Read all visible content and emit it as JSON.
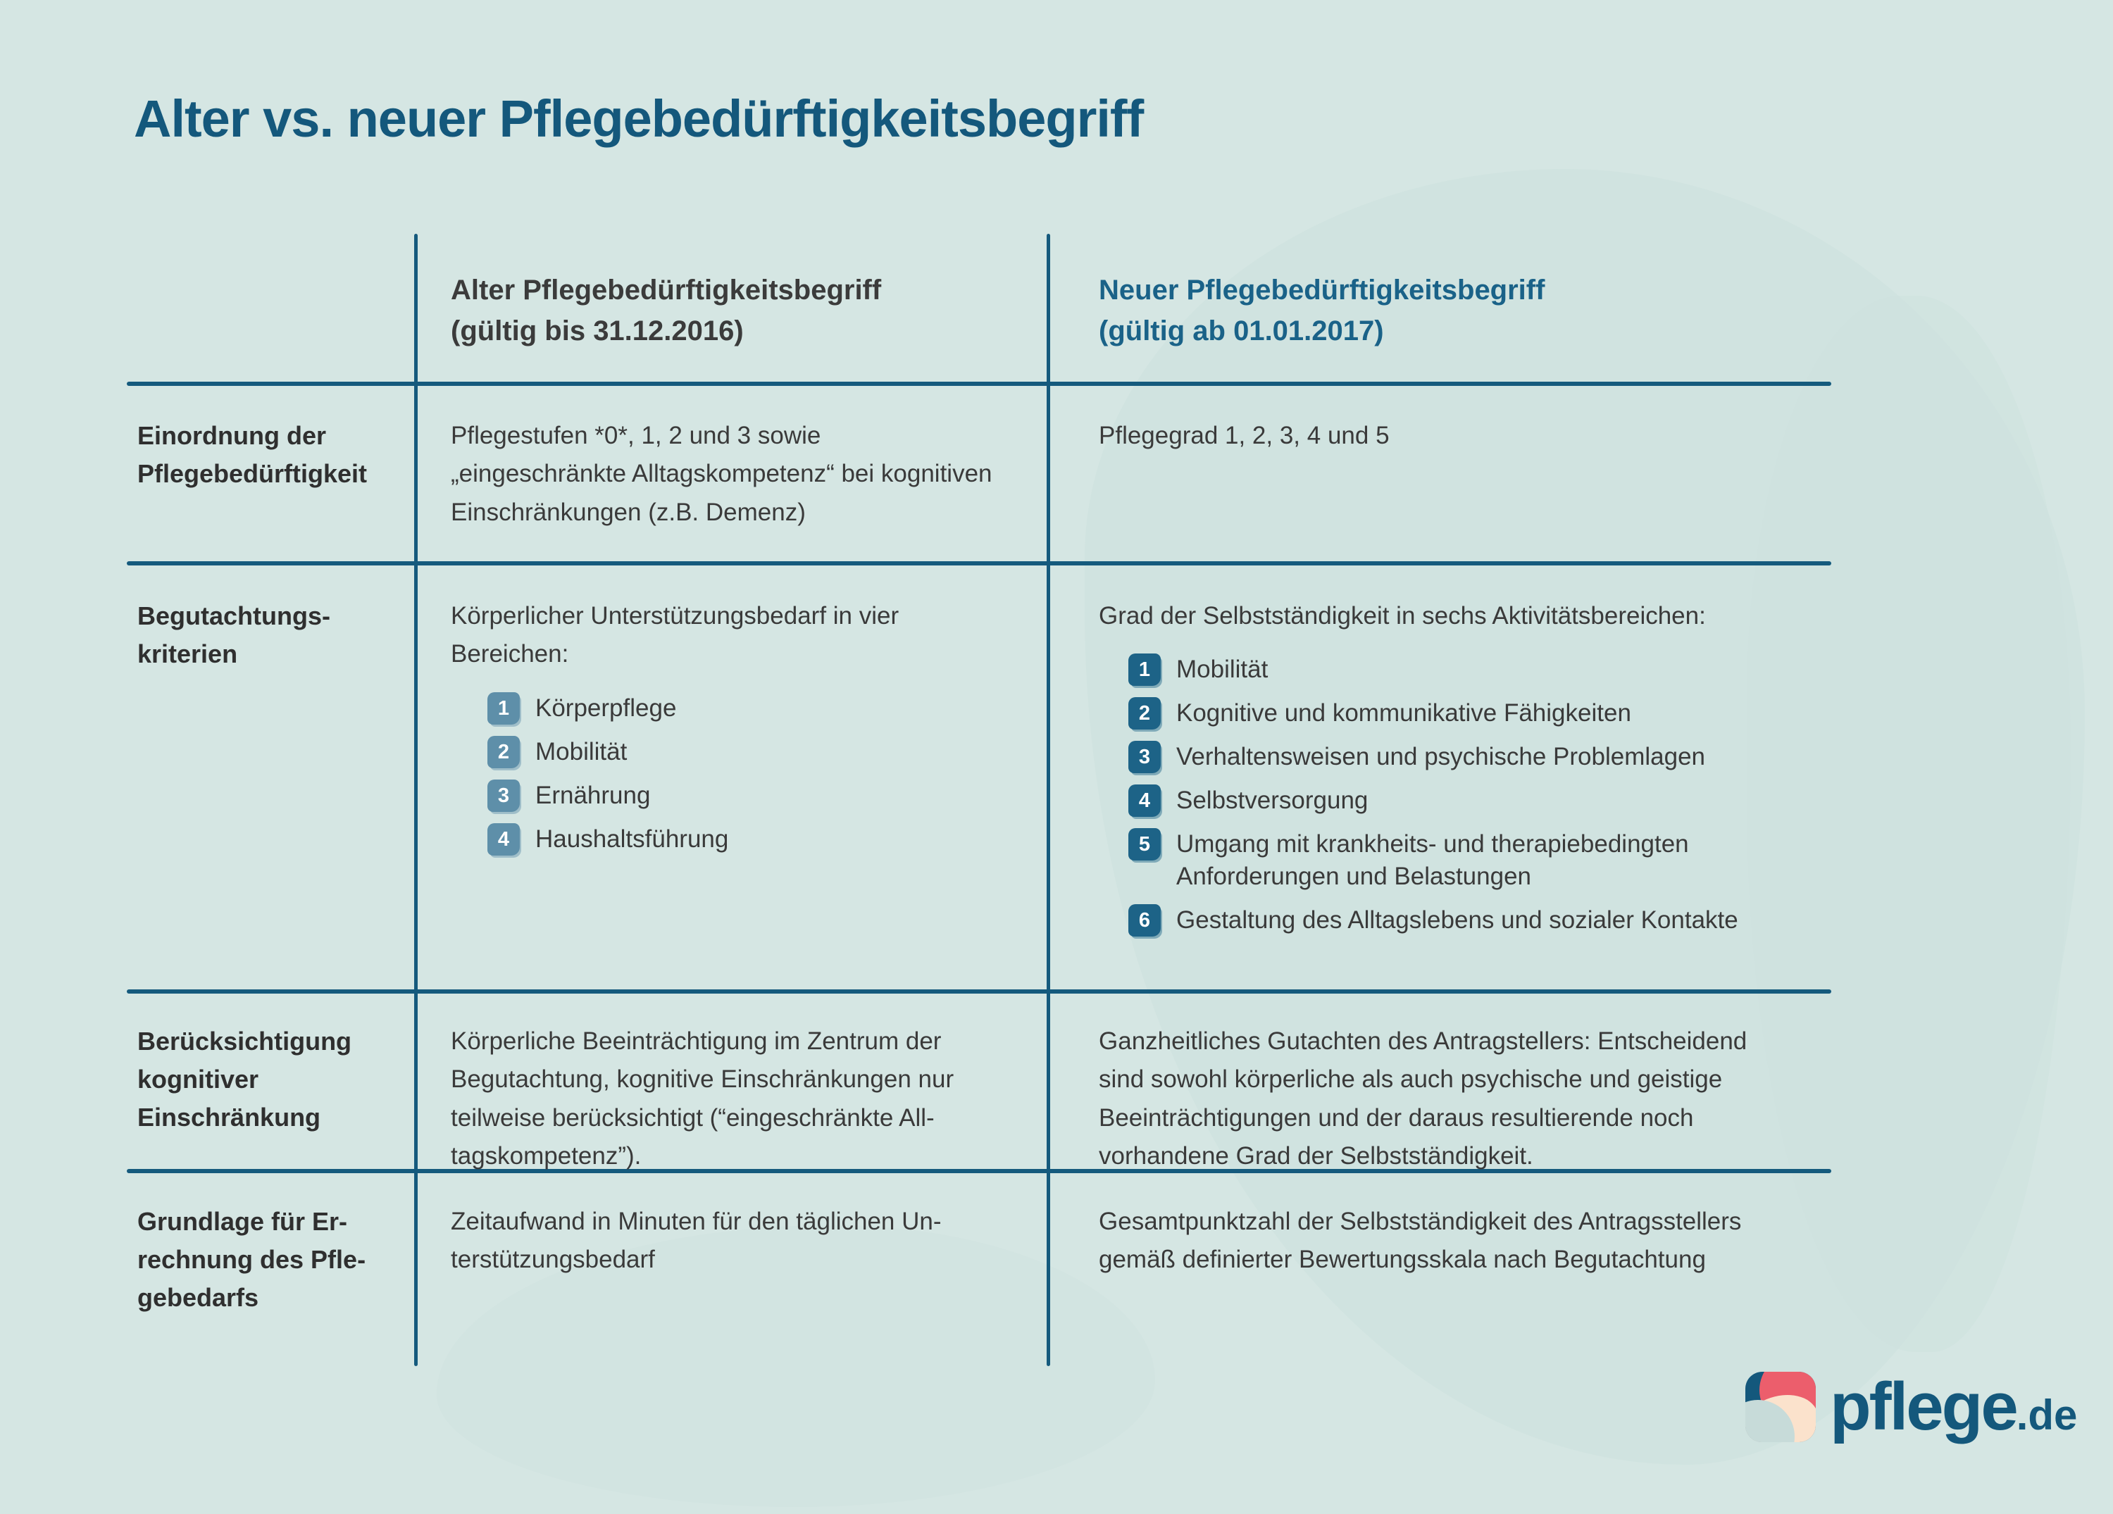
{
  "page": {
    "title": "Alter vs. neuer Pflegebedürftigkeitsbegriff"
  },
  "colors": {
    "background": "#d5e6e3",
    "accent_blue": "#14587c",
    "new_header_blue": "#1a6288",
    "badge_old_blue": "#5e8fa9",
    "badge_new_blue": "#1d6387",
    "text_dark": "#3a3a3a",
    "logo_pink": "#ec5e6c",
    "logo_cream": "#fbe2cc",
    "logo_pale_blue": "#c7dbd9"
  },
  "table": {
    "columns": {
      "old": {
        "title": "Alter Pflegebedürftigkeitsbegriff",
        "subtitle": "(gültig bis 31.12.2016)"
      },
      "new": {
        "title": "Neuer Pflegebedürftigkeitsbegriff",
        "subtitle": "(gültig ab 01.01.2017)"
      }
    },
    "rows": [
      {
        "label": "Einordnung der Pflegebedürftigkeit",
        "old": {
          "text": "Pflegestufen *0*, 1, 2 und 3 sowie „eingeschränkte Alltagskompetenz“ bei kognitiven Einschränkungen (z.B. Demenz)"
        },
        "new": {
          "text": "Pflegegrad 1, 2, 3, 4 und 5"
        }
      },
      {
        "label": "Begutachtungs­kriterien",
        "old": {
          "intro": "Körperlicher Unterstützungsbedarf in vier Bereichen:",
          "items": [
            {
              "num": "1",
              "label": "Körperpflege"
            },
            {
              "num": "2",
              "label": "Mobilität"
            },
            {
              "num": "3",
              "label": "Ernährung"
            },
            {
              "num": "4",
              "label": "Haushaltsführung"
            }
          ]
        },
        "new": {
          "intro": "Grad der Selbstständigkeit in sechs Aktivitätsbereichen:",
          "items": [
            {
              "num": "1",
              "label": "Mobilität"
            },
            {
              "num": "2",
              "label": "Kognitive und kommunikative Fähigkeiten"
            },
            {
              "num": "3",
              "label": "Verhaltensweisen und psychische Problemlagen"
            },
            {
              "num": "4",
              "label": "Selbstversorgung"
            },
            {
              "num": "5",
              "label": "Umgang mit krankheits- und therapiebedingten Anforderungen und Belastungen"
            },
            {
              "num": "6",
              "label": "Gestaltung des Alltagslebens und sozialer Kontakte"
            }
          ]
        }
      },
      {
        "label": "Berücksichtigung kognitiver Einschränkung",
        "old": {
          "text": "Körperliche Beeinträchtigung im Zentrum der Begutachtung, kognitive Einschränkungen nur teilweise berücksichtigt (“eingeschränkte All­tagskompetenz”)."
        },
        "new": {
          "text": "Ganzheitliches Gutachten des Antragstellers: Entschei­dend sind sowohl körperliche als auch psychische und geistige Beeinträchtigungen und der daraus resultierende noch vorhandene Grad der Selbstständigkeit."
        }
      },
      {
        "label": "Grundlage für Er­rechnung des Pfle­gebedarfs",
        "old": {
          "text": "Zeitaufwand in Minuten für den täglichen Un­terstützungsbedarf"
        },
        "new": {
          "text": "Gesamtpunktzahl der Selbstständigkeit des Antrags­stellers gemäß definierter Bewertungsskala nach Begutachtung"
        }
      }
    ]
  },
  "logo": {
    "name": "pflege",
    "tld": ".de"
  }
}
